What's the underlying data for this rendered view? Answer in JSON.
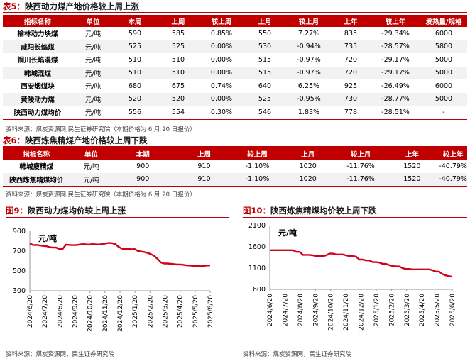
{
  "table5": {
    "prefix": "表5：",
    "title": "陕西动力煤产地价格较上周上涨",
    "headers": [
      "指标名称",
      "单位",
      "本周",
      "上周",
      "较上周",
      "上月",
      "较上月",
      "上年",
      "较上年",
      "发热量/规格"
    ],
    "rows": [
      [
        "榆林动力块煤",
        "元/吨",
        "590",
        "585",
        "0.85%",
        "550",
        "7.27%",
        "835",
        "-29.34%",
        "6000"
      ],
      [
        "咸阳长焰煤",
        "元/吨",
        "525",
        "525",
        "0.00%",
        "530",
        "-0.94%",
        "735",
        "-28.57%",
        "5800"
      ],
      [
        "铜川长焰混煤",
        "元/吨",
        "510",
        "510",
        "0.00%",
        "515",
        "-0.97%",
        "720",
        "-29.17%",
        "5000"
      ],
      [
        "韩城混煤",
        "元/吨",
        "510",
        "510",
        "0.00%",
        "515",
        "-0.97%",
        "720",
        "-29.17%",
        "5000"
      ],
      [
        "西安烟煤块",
        "元/吨",
        "680",
        "675",
        "0.74%",
        "640",
        "6.25%",
        "925",
        "-26.49%",
        "6000"
      ],
      [
        "黄陵动力煤",
        "元/吨",
        "520",
        "520",
        "0.00%",
        "525",
        "-0.95%",
        "730",
        "-28.77%",
        "5000"
      ],
      [
        "陕西动力煤均价",
        "元/吨",
        "556",
        "554",
        "0.30%",
        "546",
        "1.83%",
        "778",
        "-28.51%",
        "-"
      ]
    ],
    "source": "资料来源：煤炭资源网,民生证券研究院（本期价格为 6 月 20 日报价）"
  },
  "table6": {
    "prefix": "表6：",
    "title": "陕西炼焦精煤产地价格较上周下跌",
    "headers": [
      "指标名称",
      "单位",
      "本期",
      "上周",
      "较上周",
      "上月",
      "较上月",
      "上年",
      "较上年"
    ],
    "rows": [
      [
        "韩城瘦精煤",
        "元/吨",
        "900",
        "910",
        "-1.10%",
        "1020",
        "-11.76%",
        "1520",
        "-40.79%"
      ],
      [
        "陕西炼焦精煤均价",
        "元/吨",
        "900",
        "910",
        "-1.10%",
        "1020",
        "-11.76%",
        "1520",
        "-40.79%"
      ]
    ],
    "source": "资料来源：煤炭资源网,民生证券研究院（本期价格为 6 月 20 日报价）"
  },
  "fig9": {
    "prefix": "图9：",
    "title": "陕西动力煤均价较上周上涨",
    "source": "资料来源：煤炭资源网，民生证券研究院"
  },
  "fig10": {
    "prefix": "图10：",
    "title": "陕西炼焦精煤均价较上周下跌",
    "source": "资料来源：煤炭资源网，民生证券研究院"
  },
  "chart_data": [
    {
      "type": "line",
      "ylabel": "元/吨",
      "ylim": [
        300,
        900
      ],
      "yticks": [
        300,
        500,
        700,
        900
      ],
      "xticks": [
        "2024/6/20",
        "2024/7/20",
        "2024/8/20",
        "2024/9/20",
        "2024/10/20",
        "2024/11/20",
        "2024/12/20",
        "2025/1/20",
        "2025/2/20",
        "2025/3/20",
        "2025/4/20",
        "2025/5/20",
        "2025/6/20"
      ],
      "color": "#d0021b",
      "series": [
        {
          "values": [
            778,
            760,
            762,
            758,
            752,
            750,
            740,
            735,
            736,
            720,
            720,
            765,
            762,
            760,
            760,
            765,
            770,
            768,
            765,
            770,
            768,
            766,
            770,
            775,
            782,
            780,
            772,
            745,
            725,
            720,
            722,
            718,
            720,
            700,
            695,
            690,
            680,
            668,
            650,
            620,
            585,
            575,
            575,
            572,
            568,
            565,
            565,
            560,
            556,
            554,
            550,
            552,
            548,
            550,
            555,
            556
          ]
        }
      ]
    },
    {
      "type": "line",
      "ylabel": "元/吨",
      "ylim": [
        600,
        2100
      ],
      "yticks": [
        600,
        1100,
        1600,
        2100
      ],
      "xticks": [
        "2024/6/20",
        "2024/7/20",
        "2024/8/20",
        "2024/9/20",
        "2024/10/20",
        "2024/11/20",
        "2024/12/20",
        "2025/1/20",
        "2025/2/20",
        "2025/3/20",
        "2025/4/20",
        "2025/5/20",
        "2025/6/20"
      ],
      "color": "#d0021b",
      "series": [
        {
          "values": [
            1520,
            1520,
            1520,
            1520,
            1520,
            1520,
            1520,
            1520,
            1480,
            1480,
            1410,
            1410,
            1410,
            1400,
            1380,
            1380,
            1380,
            1400,
            1440,
            1440,
            1420,
            1420,
            1420,
            1400,
            1380,
            1380,
            1370,
            1300,
            1300,
            1280,
            1280,
            1240,
            1240,
            1230,
            1200,
            1200,
            1170,
            1150,
            1140,
            1140,
            1100,
            1080,
            1080,
            1070,
            1070,
            1070,
            1070,
            1070,
            1070,
            1050,
            1020,
            1020,
            960,
            930,
            910,
            900
          ]
        }
      ]
    }
  ]
}
